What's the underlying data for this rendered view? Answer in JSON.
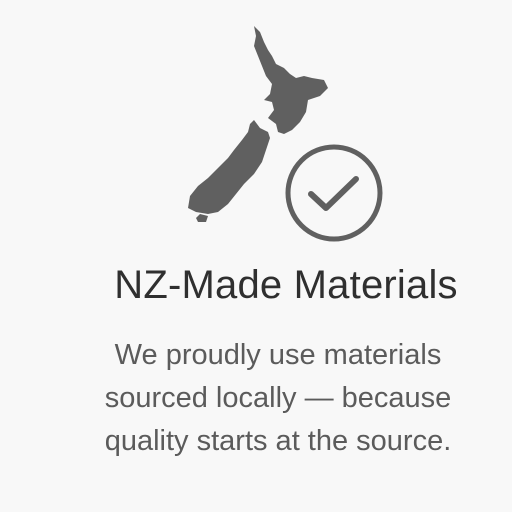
{
  "feature": {
    "title": "NZ-Made Materials",
    "description_lines": [
      "We proudly use materials",
      "sourced locally — because",
      "quality starts at the source."
    ],
    "icons": {
      "map": "new-zealand-map-icon",
      "badge": "checkmark-circle-icon"
    }
  },
  "colors": {
    "background": "#f8f8f8",
    "icon": "#606060",
    "title": "#2f2f2f",
    "body": "#5b5b5b"
  }
}
